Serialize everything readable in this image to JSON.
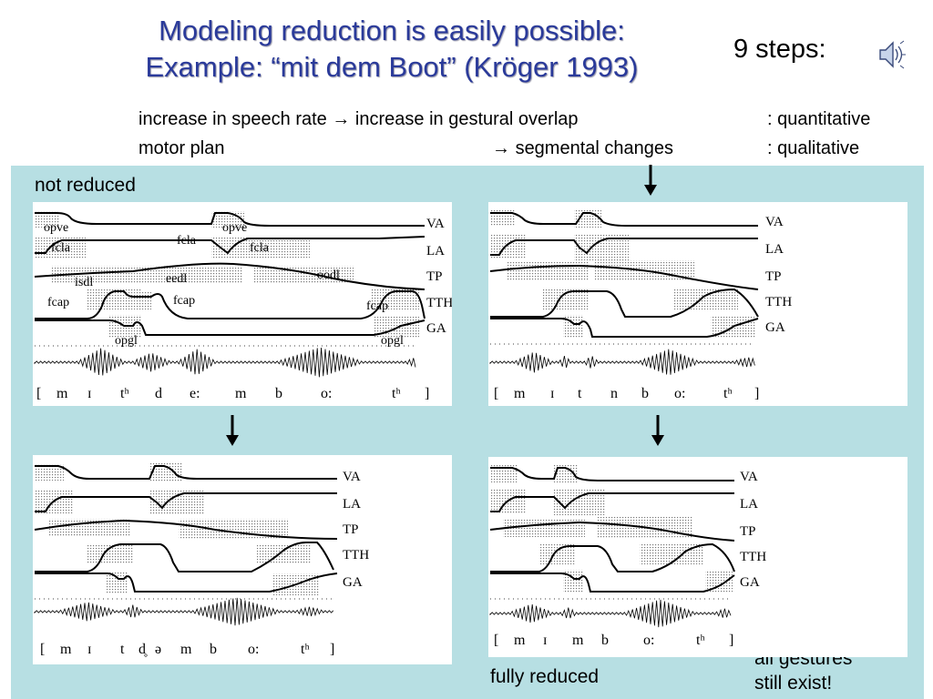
{
  "slide": {
    "title_line1": "Modeling reduction is easily possible:",
    "title_line2": "Example: “mit dem Boot” (Kröger 1993)",
    "steps": "9 steps:",
    "line1_left": "increase in speech rate",
    "line1_right": "increase in gestural overlap",
    "line1_kind": ": quantitative",
    "line2_left": "motor plan",
    "line2_right": "segmental changes",
    "line2_kind": ": qualitative",
    "arrow_glyph": "→",
    "label_not_reduced": "not reduced",
    "label_fully_reduced": "fully reduced",
    "label_gestures_1": "all gestures",
    "label_gestures_2": "still exist!"
  },
  "tiers": [
    "VA",
    "LA",
    "TP",
    "TTH",
    "GA"
  ],
  "panels": {
    "p1": {
      "transcription": [
        "[",
        "m",
        "ɪ",
        "tʰ",
        "d",
        "e:",
        "m",
        "b",
        "o:",
        "tʰ",
        "]"
      ],
      "gestures": [
        "opve",
        "fcla",
        "fcla",
        "opve",
        "fcla",
        "isdl",
        "eedl",
        "oodl",
        "fcap",
        "fcap",
        "fcap",
        "opgl",
        "opgl"
      ]
    },
    "p2": {
      "transcription": [
        "[",
        "m",
        "ɪ",
        "t",
        "n",
        "b",
        "o:",
        "tʰ",
        "]"
      ]
    },
    "p3": {
      "transcription": [
        "[",
        "m",
        "ɪ",
        "t",
        "d̥",
        "ə",
        "m",
        "b",
        "o:",
        "tʰ",
        "]"
      ]
    },
    "p4": {
      "transcription": [
        "[",
        "m",
        "ɪ",
        "m",
        "b",
        "o:",
        "tʰ",
        "]"
      ]
    }
  },
  "icons": {
    "speaker": "speaker-icon",
    "arrow": "down-arrow-icon"
  }
}
